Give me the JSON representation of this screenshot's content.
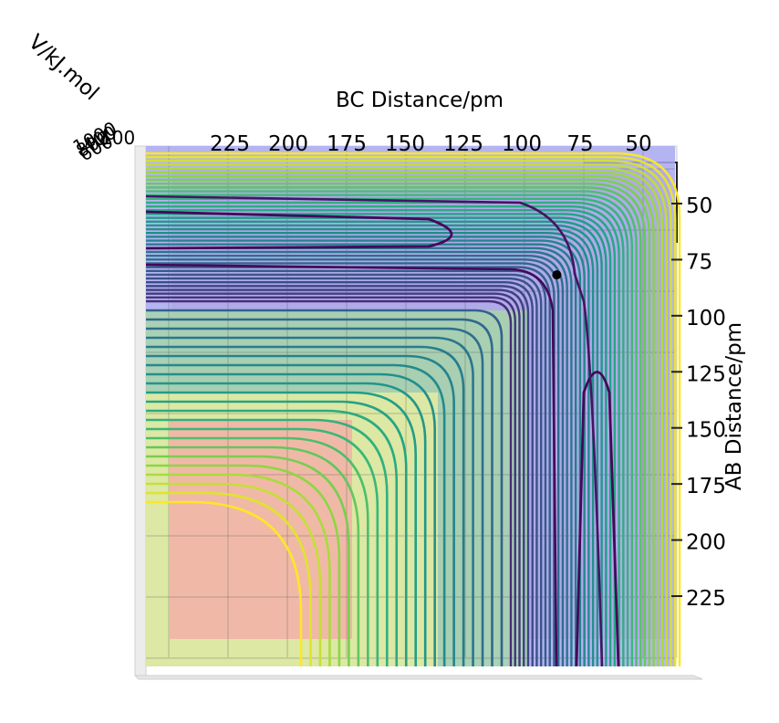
{
  "chart_data": {
    "type": "contour",
    "projection": "3d surface viewed from above",
    "xlabel": "BC Distance/pm",
    "ylabel": "AB Distance/pm",
    "zlabel": "V/kJ.mol",
    "x_ticks": [
      225,
      200,
      175,
      150,
      125,
      100,
      75,
      50
    ],
    "y_ticks": [
      50,
      75,
      100,
      125,
      150,
      175,
      200,
      225
    ],
    "xlim": [
      40,
      250
    ],
    "ylim": [
      40,
      250
    ],
    "colormap": "viridis",
    "contour_levels": 40,
    "marked_point": {
      "x": 85,
      "y": 83
    },
    "grid": true,
    "colors": {
      "low": "#440154",
      "mid": "#21908d",
      "high": "#fde725",
      "surface_blue": "#a9a9f2",
      "surface_red": "#cc9999",
      "surface_pink": "#f3b0a8",
      "point": "#000000"
    }
  }
}
